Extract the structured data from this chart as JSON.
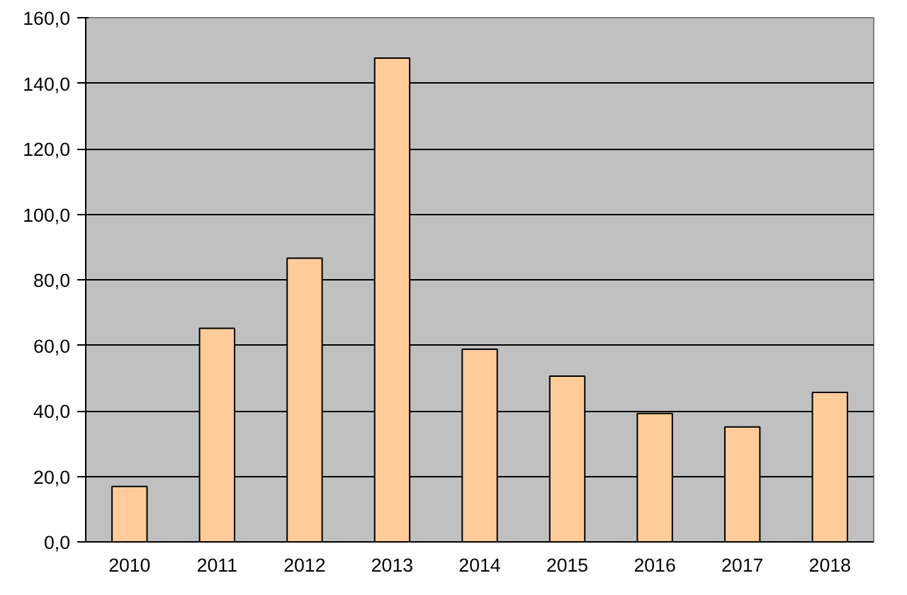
{
  "chart_data": {
    "type": "bar",
    "categories": [
      "2010",
      "2011",
      "2012",
      "2013",
      "2014",
      "2015",
      "2016",
      "2017",
      "2018"
    ],
    "values": [
      16.9,
      65.2,
      86.6,
      147.7,
      58.8,
      50.6,
      39.2,
      35.1,
      45.6
    ],
    "color": "#ffcc99",
    "ylim": [
      0,
      160
    ],
    "yticks": [
      {
        "value": 0,
        "label": "0,0"
      },
      {
        "value": 20,
        "label": "20,0"
      },
      {
        "value": 40,
        "label": "40,0"
      },
      {
        "value": 60,
        "label": "60,0"
      },
      {
        "value": 80,
        "label": "80,0"
      },
      {
        "value": 100,
        "label": "100,0"
      },
      {
        "value": 120,
        "label": "120,0"
      },
      {
        "value": 140,
        "label": "140,0"
      },
      {
        "value": 160,
        "label": "160,0"
      }
    ],
    "grid": "y"
  }
}
